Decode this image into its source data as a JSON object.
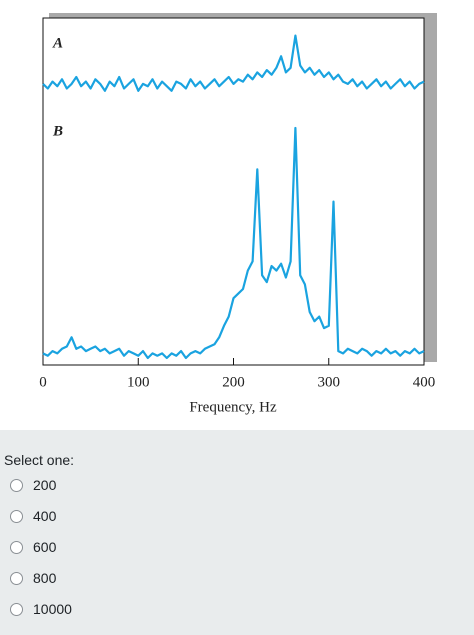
{
  "chart_data": {
    "type": "line",
    "xlabel": "Frequency, Hz",
    "xlim": [
      0,
      400
    ],
    "xticks": [
      0,
      100,
      200,
      300,
      400
    ],
    "ylim": [
      0,
      1
    ],
    "x": [
      0,
      5,
      10,
      15,
      20,
      25,
      30,
      35,
      40,
      45,
      50,
      55,
      60,
      65,
      70,
      75,
      80,
      85,
      90,
      95,
      100,
      105,
      110,
      115,
      120,
      125,
      130,
      135,
      140,
      145,
      150,
      155,
      160,
      165,
      170,
      175,
      180,
      185,
      190,
      195,
      200,
      205,
      210,
      215,
      220,
      225,
      230,
      235,
      240,
      245,
      250,
      255,
      260,
      265,
      270,
      275,
      280,
      285,
      290,
      295,
      300,
      305,
      310,
      315,
      320,
      325,
      330,
      335,
      340,
      345,
      350,
      355,
      360,
      365,
      370,
      375,
      380,
      385,
      390,
      395,
      400
    ],
    "series": [
      {
        "name": "A",
        "color": "#1aa3e0",
        "values": [
          0.07,
          0.05,
          0.08,
          0.06,
          0.09,
          0.05,
          0.07,
          0.1,
          0.06,
          0.08,
          0.05,
          0.09,
          0.07,
          0.04,
          0.08,
          0.06,
          0.1,
          0.05,
          0.07,
          0.09,
          0.04,
          0.07,
          0.06,
          0.09,
          0.05,
          0.08,
          0.06,
          0.04,
          0.08,
          0.07,
          0.05,
          0.09,
          0.06,
          0.08,
          0.05,
          0.07,
          0.09,
          0.06,
          0.08,
          0.1,
          0.07,
          0.09,
          0.08,
          0.11,
          0.09,
          0.12,
          0.1,
          0.13,
          0.11,
          0.14,
          0.19,
          0.12,
          0.14,
          0.28,
          0.15,
          0.12,
          0.14,
          0.11,
          0.13,
          0.1,
          0.12,
          0.09,
          0.11,
          0.08,
          0.07,
          0.09,
          0.06,
          0.08,
          0.05,
          0.07,
          0.09,
          0.06,
          0.08,
          0.05,
          0.07,
          0.09,
          0.06,
          0.08,
          0.05,
          0.07,
          0.08
        ]
      },
      {
        "name": "B",
        "color": "#1aa3e0",
        "values": [
          0.02,
          0.01,
          0.03,
          0.02,
          0.04,
          0.05,
          0.09,
          0.04,
          0.05,
          0.03,
          0.04,
          0.05,
          0.03,
          0.04,
          0.02,
          0.03,
          0.04,
          0.01,
          0.03,
          0.02,
          0.01,
          0.03,
          0.0,
          0.02,
          0.01,
          0.02,
          0.0,
          0.02,
          0.01,
          0.03,
          0.0,
          0.02,
          0.03,
          0.02,
          0.04,
          0.05,
          0.06,
          0.09,
          0.14,
          0.18,
          0.26,
          0.28,
          0.3,
          0.38,
          0.42,
          0.82,
          0.36,
          0.33,
          0.4,
          0.38,
          0.41,
          0.35,
          0.42,
          1.0,
          0.36,
          0.32,
          0.2,
          0.16,
          0.18,
          0.13,
          0.14,
          0.68,
          0.03,
          0.02,
          0.04,
          0.03,
          0.02,
          0.04,
          0.03,
          0.01,
          0.03,
          0.02,
          0.04,
          0.02,
          0.03,
          0.01,
          0.03,
          0.02,
          0.04,
          0.02,
          0.03
        ]
      }
    ]
  },
  "question": {
    "prompt": "Select one:",
    "options": [
      "200",
      "400",
      "600",
      "800",
      "10000"
    ]
  }
}
